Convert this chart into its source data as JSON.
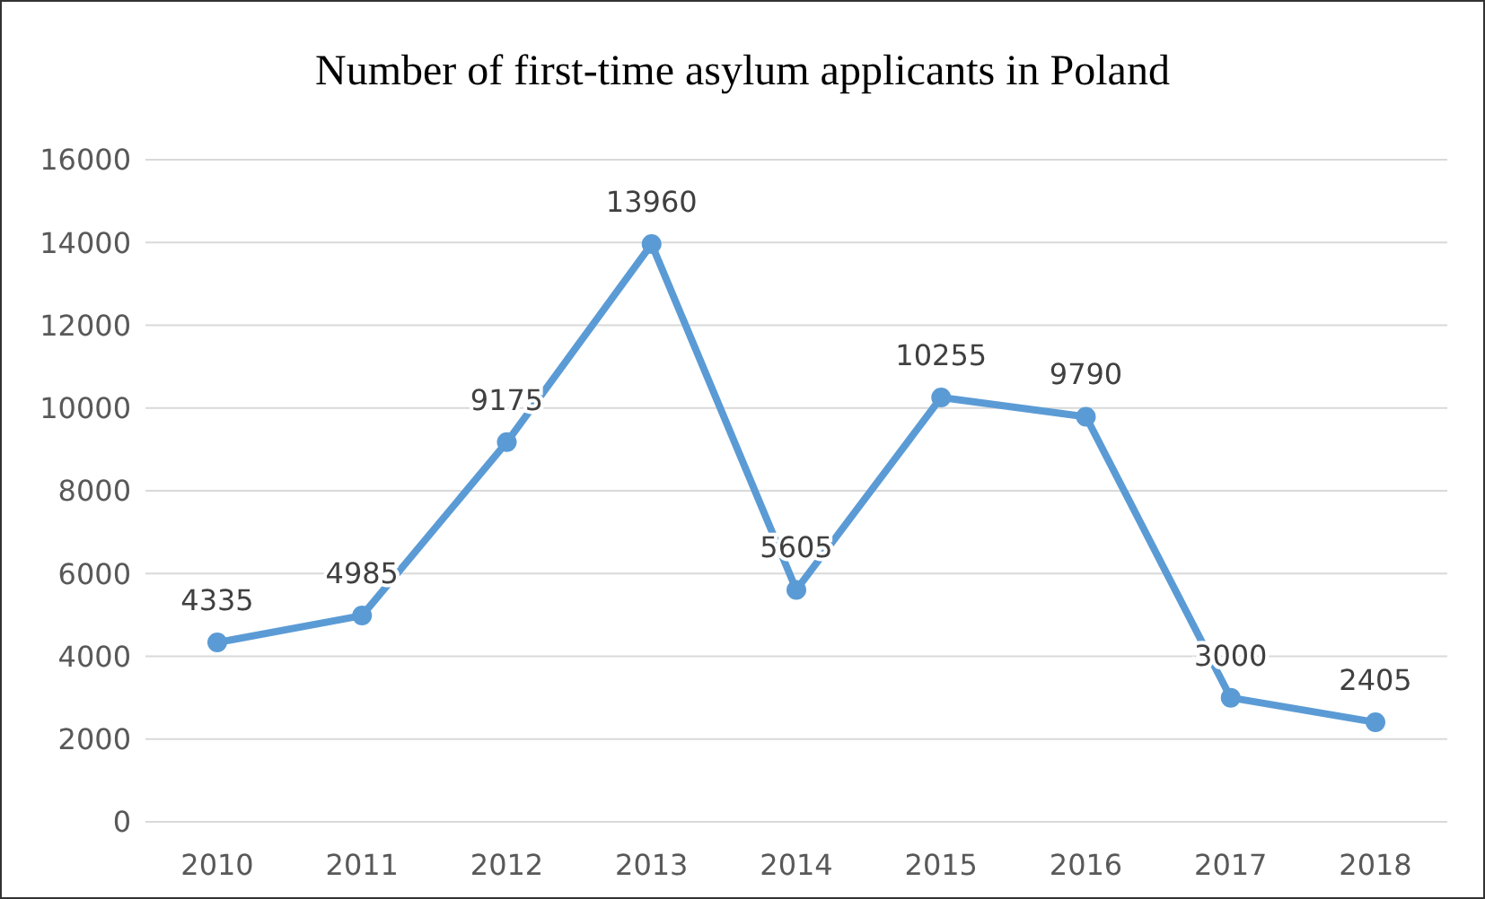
{
  "chart_data": {
    "type": "line",
    "title": "Number of first-time asylum applicants in Poland",
    "categories": [
      "2010",
      "2011",
      "2012",
      "2013",
      "2014",
      "2015",
      "2016",
      "2017",
      "2018"
    ],
    "series": [
      {
        "color": "#5b9bd5",
        "values": [
          4335,
          4985,
          9175,
          13960,
          5605,
          10255,
          9790,
          3000,
          2405
        ]
      }
    ],
    "ylim": [
      0,
      16000
    ],
    "yticks": [
      0,
      2000,
      4000,
      6000,
      8000,
      10000,
      12000,
      14000,
      16000
    ],
    "grid": "y",
    "marker": "circle",
    "line_style": "solid",
    "data_labels": true
  }
}
